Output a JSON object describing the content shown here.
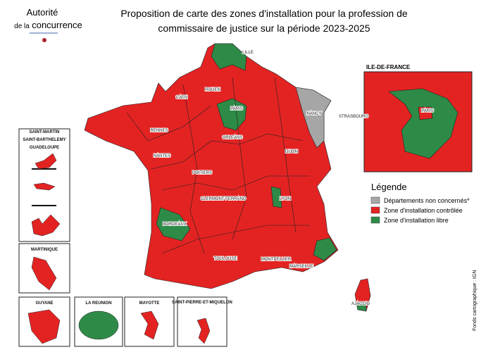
{
  "header": {
    "logo": [
      "Autorité",
      "de la",
      "concurrence"
    ],
    "title": [
      "Proposition de carte des zones d'installation pour la profession de",
      "commissaire de justice sur la période 2023-2025"
    ]
  },
  "cities": [
    "LILLE",
    "ROUEN",
    "CAEN",
    "PARIS",
    "RENNES",
    "ORLEANS",
    "NANTES",
    "NANCY",
    "STRASBOURG",
    "DIJON",
    "POITIERS",
    "CLERMONT-FERRAND",
    "LYON",
    "BORDEAUX",
    "TOULOUSE",
    "MONTPELLIER",
    "MARSEILLE",
    "AJACCIO"
  ],
  "ile_de_france": {
    "title": "ILE-DE-FRANCE",
    "city": "PARIS"
  },
  "overseas": {
    "antilles": [
      "SAINT-MARTIN",
      "SAINT-BARTHELEMY",
      "GUADELOUPE"
    ],
    "martinique": "MARTINIQUE",
    "guyane": "GUYANE",
    "reunion": "LA REUNION",
    "mayotte": "MAYOTTE",
    "spm": "SAINT-PIERRE-ET-MIQUELON"
  },
  "legend": {
    "title": "Légende",
    "items": [
      {
        "label": "Départements non concernés*",
        "color": "#a6a6a6"
      },
      {
        "label": "Zone d'installation contrôlée",
        "color": "#e32322"
      },
      {
        "label": "Zone d'installation libre",
        "color": "#2e8b47"
      }
    ]
  },
  "source": "Fonds cartographique : IGN"
}
